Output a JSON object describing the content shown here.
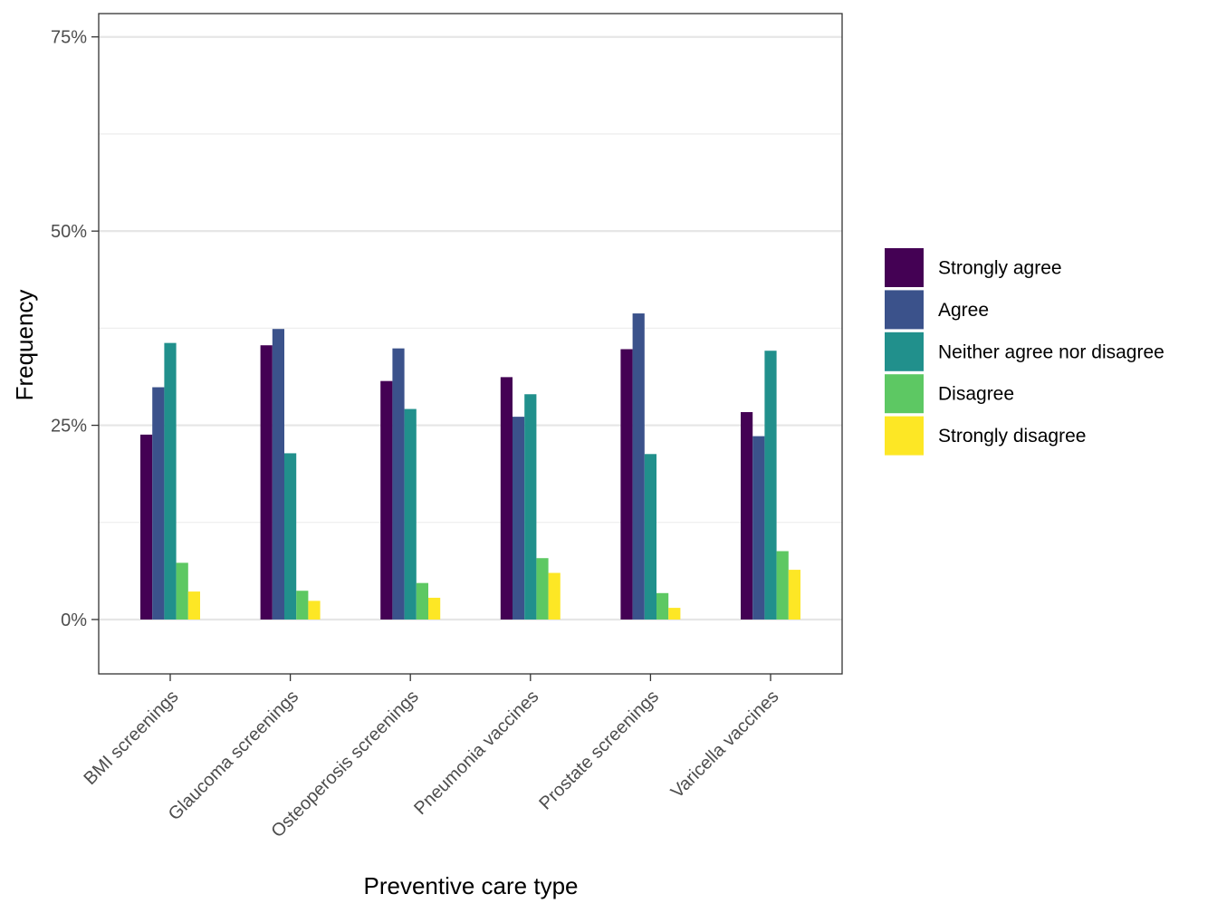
{
  "chart_data": {
    "type": "bar",
    "xlabel": "Preventive care type",
    "ylabel": "Frequency",
    "ylim": [
      -0.07,
      0.78
    ],
    "yticks": [
      0,
      0.25,
      0.5,
      0.75
    ],
    "ytick_labels": [
      "0%",
      "25%",
      "50%",
      "75%"
    ],
    "grid": true,
    "legend_position": "right",
    "categories": [
      "BMI screenings",
      "Glaucoma screenings",
      "Osteoperosis screenings",
      "Pneumonia vaccines",
      "Prostate screenings",
      "Varicella vaccines"
    ],
    "series": [
      {
        "name": "Strongly agree",
        "color": "#440154",
        "values": [
          0.238,
          0.353,
          0.307,
          0.312,
          0.348,
          0.267
        ]
      },
      {
        "name": "Agree",
        "color": "#3B528B",
        "values": [
          0.299,
          0.374,
          0.349,
          0.261,
          0.394,
          0.236
        ]
      },
      {
        "name": "Neither agree nor disagree",
        "color": "#21908C",
        "values": [
          0.356,
          0.214,
          0.271,
          0.29,
          0.213,
          0.346
        ]
      },
      {
        "name": "Disagree",
        "color": "#5DC863",
        "values": [
          0.073,
          0.037,
          0.047,
          0.079,
          0.034,
          0.088
        ]
      },
      {
        "name": "Strongly disagree",
        "color": "#FDE725",
        "values": [
          0.036,
          0.024,
          0.028,
          0.06,
          0.015,
          0.064
        ]
      }
    ]
  }
}
